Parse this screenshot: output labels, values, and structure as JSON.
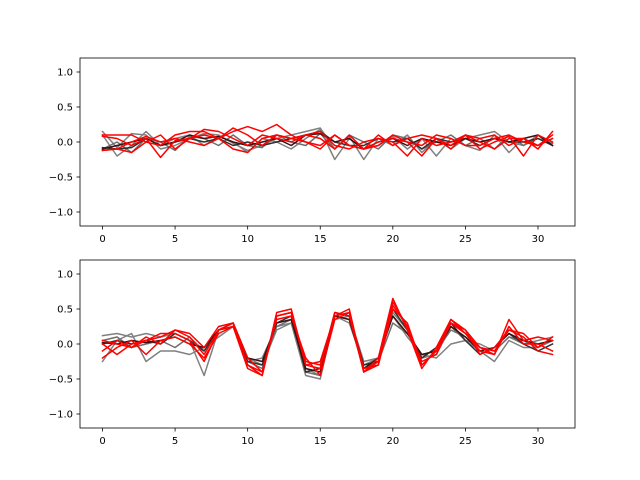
{
  "chart_data": [
    {
      "type": "line",
      "title": "",
      "xlabel": "",
      "ylabel": "",
      "xlim": [
        -1.55,
        32.55
      ],
      "ylim": [
        -1.2,
        1.2
      ],
      "xticks": [
        0,
        5,
        10,
        15,
        20,
        25,
        30
      ],
      "yticks": [
        -1.0,
        -0.5,
        0.0,
        0.5,
        1.0
      ],
      "xtick_labels": [
        "0",
        "5",
        "10",
        "15",
        "20",
        "25",
        "30"
      ],
      "ytick_labels": [
        "−1.0",
        "−0.5",
        "0.0",
        "0.5",
        "1.0"
      ],
      "grid": false,
      "legend": "none",
      "x": [
        0,
        1,
        2,
        3,
        4,
        5,
        6,
        7,
        8,
        9,
        10,
        11,
        12,
        13,
        14,
        15,
        16,
        17,
        18,
        19,
        20,
        21,
        22,
        23,
        24,
        25,
        26,
        27,
        28,
        29,
        30,
        31
      ],
      "series": [
        {
          "color": "#808080",
          "values": [
            0.15,
            -0.08,
            0.12,
            0.1,
            -0.1,
            -0.05,
            0.05,
            0.12,
            0.1,
            -0.02,
            -0.12,
            -0.05,
            0.05,
            0.1,
            0.15,
            0.2,
            -0.1,
            0.08,
            -0.25,
            0.05,
            -0.05,
            0.1,
            -0.15,
            0.05,
            -0.1,
            0.05,
            0.1,
            0.15,
            0.0,
            -0.05,
            0.1,
            -0.05
          ]
        },
        {
          "color": "#808080",
          "values": [
            0.1,
            -0.2,
            -0.05,
            0.15,
            -0.05,
            0.05,
            0.1,
            -0.05,
            0.08,
            0.0,
            -0.15,
            0.05,
            0.0,
            -0.1,
            0.05,
            0.18,
            -0.25,
            0.05,
            -0.1,
            -0.05,
            0.08,
            -0.1,
            0.05,
            -0.2,
            0.05,
            -0.05,
            -0.12,
            0.1,
            -0.15,
            0.05,
            -0.05,
            0.05
          ]
        },
        {
          "color": "#6e6e6e",
          "values": [
            -0.1,
            0.0,
            -0.15,
            0.05,
            0.0,
            -0.12,
            0.08,
            0.05,
            -0.05,
            0.1,
            -0.05,
            -0.08,
            0.1,
            0.0,
            -0.05,
            0.12,
            -0.1,
            0.1,
            0.0,
            -0.1,
            0.1,
            0.05,
            -0.1,
            0.0,
            0.1,
            -0.05,
            0.05,
            -0.1,
            0.1,
            -0.05,
            0.05,
            -0.02
          ]
        },
        {
          "color": "#303030",
          "values": [
            -0.08,
            -0.1,
            -0.08,
            0.05,
            -0.05,
            0.0,
            0.05,
            0.0,
            0.05,
            -0.05,
            0.0,
            -0.05,
            0.0,
            0.05,
            0.1,
            0.15,
            0.0,
            -0.05,
            -0.05,
            0.05,
            0.0,
            0.05,
            -0.1,
            0.05,
            0.0,
            0.05,
            -0.05,
            0.05,
            0.0,
            0.0,
            0.05,
            -0.05
          ]
        },
        {
          "color": "#3a1010",
          "values": [
            -0.1,
            -0.05,
            0.0,
            0.05,
            -0.05,
            0.0,
            0.1,
            0.05,
            0.08,
            0.0,
            -0.05,
            0.0,
            0.05,
            -0.05,
            0.1,
            0.12,
            0.0,
            0.05,
            -0.1,
            0.0,
            0.05,
            -0.05,
            0.05,
            0.0,
            -0.05,
            0.05,
            0.0,
            0.05,
            0.0,
            0.05,
            0.1,
            -0.05
          ]
        },
        {
          "color": "#ff0000",
          "values": [
            0.08,
            0.05,
            -0.05,
            0.05,
            -0.22,
            0.02,
            0.05,
            0.18,
            0.15,
            0.05,
            -0.05,
            0.1,
            0.05,
            0.0,
            0.1,
            0.15,
            -0.05,
            -0.1,
            0.0,
            0.05,
            0.0,
            -0.2,
            0.05,
            -0.05,
            0.0,
            0.1,
            0.05,
            0.1,
            -0.05,
            0.05,
            -0.05,
            0.1
          ]
        },
        {
          "color": "#ff0000",
          "values": [
            -0.12,
            -0.1,
            0.0,
            0.08,
            0.0,
            0.05,
            0.0,
            -0.05,
            0.05,
            0.15,
            0.22,
            0.15,
            0.25,
            0.1,
            0.0,
            -0.1,
            0.1,
            -0.05,
            -0.1,
            0.1,
            -0.05,
            0.05,
            0.1,
            0.05,
            -0.1,
            0.1,
            -0.1,
            0.0,
            0.08,
            -0.2,
            0.1,
            0.0
          ]
        },
        {
          "color": "#ff0000",
          "values": [
            0.1,
            0.1,
            0.1,
            0.0,
            0.1,
            -0.1,
            0.05,
            0.1,
            0.05,
            -0.1,
            -0.15,
            0.05,
            0.1,
            0.05,
            0.0,
            -0.05,
            0.1,
            -0.05,
            -0.1,
            -0.05,
            0.1,
            0.0,
            -0.05,
            0.1,
            0.05,
            -0.05,
            -0.05,
            0.05,
            0.1,
            0.0,
            -0.05,
            0.05
          ]
        },
        {
          "color": "#ff0000",
          "values": [
            -0.12,
            -0.1,
            -0.15,
            0.0,
            -0.05,
            0.1,
            0.15,
            0.15,
            0.05,
            0.2,
            0.1,
            -0.05,
            0.1,
            0.05,
            0.1,
            0.05,
            -0.1,
            0.1,
            -0.1,
            0.0,
            0.05,
            0.0,
            -0.2,
            0.05,
            -0.05,
            0.1,
            0.0,
            -0.1,
            0.05,
            0.05,
            -0.1,
            0.15
          ]
        }
      ]
    },
    {
      "type": "line",
      "title": "",
      "xlabel": "",
      "ylabel": "",
      "xlim": [
        -1.55,
        32.55
      ],
      "ylim": [
        -1.2,
        1.2
      ],
      "xticks": [
        0,
        5,
        10,
        15,
        20,
        25,
        30
      ],
      "yticks": [
        -1.0,
        -0.5,
        0.0,
        0.5,
        1.0
      ],
      "xtick_labels": [
        "0",
        "5",
        "10",
        "15",
        "20",
        "25",
        "30"
      ],
      "ytick_labels": [
        "−1.0",
        "−0.5",
        "0.0",
        "0.5",
        "1.0"
      ],
      "grid": false,
      "legend": "none",
      "x": [
        0,
        1,
        2,
        3,
        4,
        5,
        6,
        7,
        8,
        9,
        10,
        11,
        12,
        13,
        14,
        15,
        16,
        17,
        18,
        19,
        20,
        21,
        22,
        23,
        24,
        25,
        26,
        27,
        28,
        29,
        30,
        31
      ],
      "series": [
        {
          "color": "#808080",
          "values": [
            0.12,
            0.15,
            0.1,
            0.15,
            0.1,
            0.15,
            0.05,
            -0.45,
            0.2,
            0.3,
            -0.2,
            -0.3,
            0.2,
            0.3,
            -0.45,
            -0.5,
            0.4,
            0.3,
            -0.3,
            -0.2,
            0.45,
            0.2,
            -0.2,
            -0.15,
            0.25,
            0.05,
            0.0,
            -0.1,
            0.1,
            0.0,
            0.05,
            0.1
          ]
        },
        {
          "color": "#808080",
          "values": [
            -0.25,
            0.05,
            0.15,
            -0.25,
            -0.1,
            -0.1,
            -0.15,
            -0.05,
            0.1,
            0.25,
            -0.25,
            -0.2,
            0.25,
            0.3,
            -0.35,
            -0.45,
            0.35,
            0.4,
            -0.25,
            -0.2,
            0.4,
            0.1,
            -0.15,
            -0.2,
            0.0,
            0.05,
            -0.1,
            -0.25,
            0.05,
            -0.05,
            -0.05,
            0.05
          ]
        },
        {
          "color": "#6e6e6e",
          "values": [
            0.05,
            0.1,
            -0.05,
            0.0,
            0.05,
            -0.05,
            0.1,
            -0.1,
            0.2,
            0.3,
            -0.25,
            -0.35,
            0.25,
            0.35,
            -0.4,
            -0.45,
            0.4,
            0.35,
            -0.35,
            -0.25,
            0.3,
            0.15,
            -0.15,
            -0.1,
            0.2,
            0.1,
            -0.05,
            -0.1,
            0.1,
            0.05,
            -0.05,
            0.05
          ]
        },
        {
          "color": "#303030",
          "values": [
            0.0,
            0.05,
            0.0,
            0.05,
            0.0,
            0.15,
            0.05,
            -0.1,
            0.2,
            0.25,
            -0.25,
            -0.3,
            0.3,
            0.4,
            -0.4,
            -0.35,
            0.45,
            0.4,
            -0.3,
            -0.25,
            0.5,
            0.2,
            -0.2,
            -0.05,
            0.3,
            0.05,
            -0.15,
            -0.05,
            0.15,
            0.0,
            -0.1,
            0.0
          ]
        },
        {
          "color": "#3a1010",
          "values": [
            0.02,
            0.0,
            0.05,
            0.02,
            0.05,
            0.1,
            0.0,
            -0.05,
            0.2,
            0.3,
            -0.2,
            -0.25,
            0.3,
            0.35,
            -0.35,
            -0.4,
            0.4,
            0.35,
            -0.35,
            -0.2,
            0.4,
            0.15,
            -0.15,
            -0.1,
            0.25,
            0.1,
            -0.1,
            -0.05,
            0.15,
            0.05,
            0.0,
            0.05
          ]
        },
        {
          "color": "#ff0000",
          "values": [
            0.05,
            0.0,
            -0.05,
            0.1,
            0.0,
            0.2,
            0.1,
            -0.15,
            0.2,
            0.3,
            -0.3,
            -0.4,
            0.4,
            0.45,
            -0.25,
            -0.3,
            0.4,
            0.45,
            -0.4,
            -0.3,
            0.6,
            0.25,
            -0.3,
            -0.1,
            0.35,
            0.2,
            -0.05,
            -0.15,
            0.35,
            0.05,
            0.1,
            0.05
          ]
        },
        {
          "color": "#ff0000",
          "values": [
            -0.2,
            -0.05,
            0.05,
            -0.15,
            0.05,
            0.1,
            0.0,
            -0.2,
            0.15,
            0.25,
            -0.3,
            -0.45,
            0.45,
            0.5,
            -0.3,
            -0.25,
            0.4,
            0.5,
            -0.4,
            -0.2,
            0.65,
            0.2,
            -0.35,
            -0.05,
            0.35,
            0.15,
            -0.05,
            -0.1,
            0.2,
            0.1,
            -0.1,
            -0.15
          ]
        },
        {
          "color": "#ff0000",
          "values": [
            0.0,
            -0.15,
            0.0,
            0.05,
            0.1,
            0.2,
            0.15,
            -0.05,
            0.25,
            0.3,
            -0.2,
            -0.4,
            0.35,
            0.4,
            -0.2,
            -0.45,
            0.35,
            0.45,
            -0.35,
            -0.3,
            0.5,
            0.3,
            -0.3,
            -0.1,
            0.3,
            0.2,
            -0.15,
            -0.05,
            0.2,
            0.15,
            -0.05,
            0.1
          ]
        },
        {
          "color": "#ff0000",
          "values": [
            -0.1,
            0.05,
            -0.05,
            0.05,
            0.15,
            0.15,
            0.05,
            -0.25,
            0.2,
            0.25,
            -0.35,
            -0.45,
            0.4,
            0.45,
            -0.3,
            -0.35,
            0.45,
            0.4,
            -0.4,
            -0.25,
            0.55,
            0.25,
            -0.25,
            -0.15,
            0.3,
            0.15,
            -0.1,
            -0.15,
            0.25,
            0.0,
            0.0,
            -0.1
          ]
        }
      ]
    }
  ]
}
